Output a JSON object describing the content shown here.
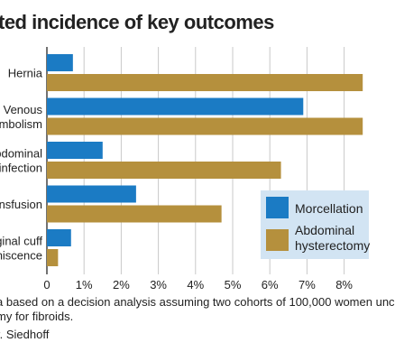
{
  "chart_data": {
    "type": "bar",
    "orientation": "horizontal",
    "title": "ted incidence of key outcomes",
    "categories": [
      {
        "lines": [
          "Hernia"
        ]
      },
      {
        "lines": [
          "Venous",
          "embolism"
        ]
      },
      {
        "lines": [
          "bdominal",
          "infection"
        ]
      },
      {
        "lines": [
          "ansfusion"
        ]
      },
      {
        "lines": [
          "ginal cuff",
          "hiscence"
        ]
      }
    ],
    "series": [
      {
        "name": "Morcellation",
        "color": "#1b7bc4",
        "values": [
          0.7,
          6.9,
          1.5,
          2.4,
          0.65
        ]
      },
      {
        "name_lines": [
          "Abdominal",
          "hysterectomy"
        ],
        "color": "#b5903d",
        "values": [
          8.5,
          8.5,
          6.3,
          4.7,
          0.3
        ]
      }
    ],
    "x_ticks": [
      "0",
      "1%",
      "2%",
      "3%",
      "4%",
      "5%",
      "6%",
      "7%",
      "8%"
    ],
    "xlim": [
      0,
      8.5
    ],
    "grid": true,
    "legend_position": "bottom-right",
    "colors": {
      "grid": "#c9c9c9",
      "axis": "#444444",
      "legend_bg": "#d2e4f3",
      "text": "#222222"
    }
  },
  "notes": [
    "a based on a decision analysis assuming two cohorts of 100,000 women unc",
    "my for fibroids.",
    "r. Siedhoff"
  ]
}
